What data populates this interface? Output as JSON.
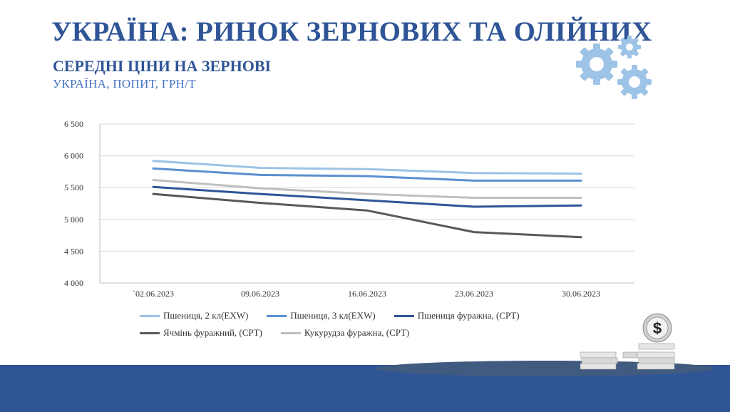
{
  "header": {
    "title": "УКРАЇНА: РИНОК ЗЕРНОВИХ ТА ОЛІЙНИХ",
    "subtitle": "СЕРЕДНІ ЦІНИ НА ЗЕРНОВІ",
    "subsubtitle": "УКРАЇНА, ПОПИТ, ГРН/Т"
  },
  "colors": {
    "accent": "#2f5597",
    "gear": "#9dc3e6",
    "band": "#2f5597"
  },
  "icons": {
    "gears": "gears-icon",
    "coin": "dollar-coin-icon"
  },
  "chart_data": {
    "type": "line",
    "categories": [
      "`02.06.2023",
      "09.06.2023",
      "16.06.2023",
      "23.06.2023",
      "30.06.2023"
    ],
    "ylim": [
      4000,
      6500
    ],
    "yticks": [
      4000,
      4500,
      5000,
      5500,
      6000,
      6500
    ],
    "ytick_labels": [
      "4 000",
      "4 500",
      "5 000",
      "5 500",
      "6 000",
      "6 500"
    ],
    "grid": true,
    "legend_position": "bottom",
    "series": [
      {
        "name": "Пшениця, 2 кл(EXW)",
        "color": "#9dc3e6",
        "values": [
          5920,
          5810,
          5790,
          5730,
          5720
        ]
      },
      {
        "name": "Пшениця, 3 кл(EXW)",
        "color": "#5b8fd0",
        "values": [
          5800,
          5700,
          5680,
          5610,
          5610
        ]
      },
      {
        "name": "Пшениця фуражна, (CPT)",
        "color": "#2f5597",
        "values": [
          5510,
          5400,
          5300,
          5200,
          5220
        ]
      },
      {
        "name": "Ячмінь фуражний, (CPT)",
        "color": "#595959",
        "values": [
          5400,
          5260,
          5140,
          4800,
          4720
        ]
      },
      {
        "name": "Кукурудза фуражна, (CPT)",
        "color": "#bfbfbf",
        "values": [
          5620,
          5490,
          5400,
          5340,
          5340
        ]
      }
    ]
  }
}
